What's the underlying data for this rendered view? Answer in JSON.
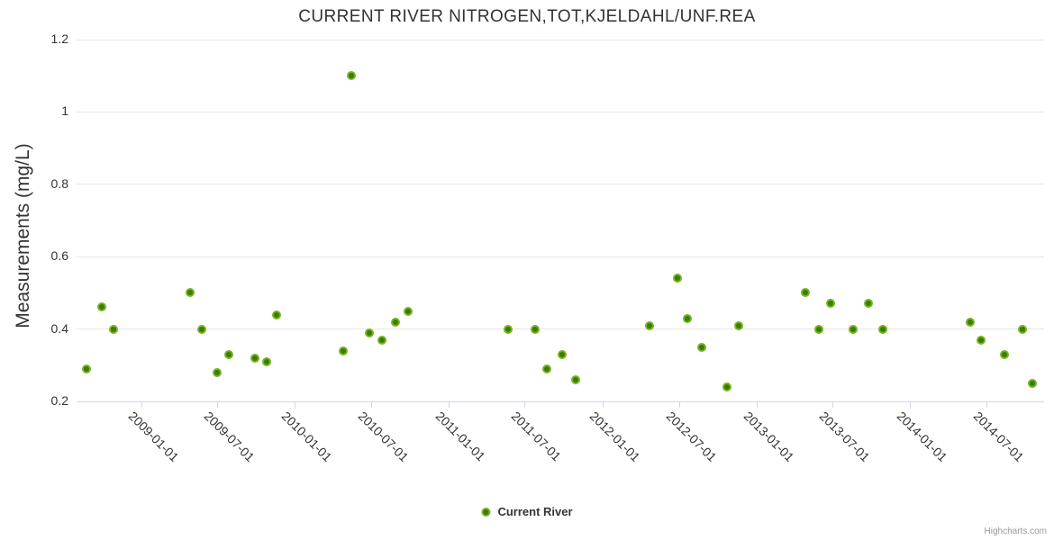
{
  "credits": "Highcharts.com",
  "colors": {
    "marker_ring": "#76b41e",
    "marker_core": "#3a7a05",
    "gridline": "#e6e6e6",
    "axis_line": "#ccd6eb",
    "text": "#333333",
    "credits_text": "#999999"
  },
  "chart_data": {
    "type": "scatter",
    "title": "CURRENT RIVER NITROGEN,TOT,KJELDAHL/UNF.REA",
    "xlabel": "",
    "ylabel": "Measurements (mg/L)",
    "ylim": [
      0.2,
      1.2
    ],
    "y_ticks": [
      0.2,
      0.4,
      0.6,
      0.8,
      1,
      1.2
    ],
    "y_tick_labels": [
      "0.2",
      "0.4",
      "0.6",
      "0.8",
      "1",
      "1.2"
    ],
    "x_min": "2008-08-01",
    "x_max": "2014-11-15",
    "x_ticks": [
      "2009-01-01",
      "2009-07-01",
      "2010-01-01",
      "2010-07-01",
      "2011-01-01",
      "2011-07-01",
      "2012-01-01",
      "2012-07-01",
      "2013-01-01",
      "2013-07-01",
      "2014-01-01",
      "2014-07-01"
    ],
    "grid": true,
    "legend_position": "bottom-center",
    "series": [
      {
        "name": "Current River",
        "color": "#76b41e",
        "points": [
          {
            "date": "2008-08-25",
            "value": 0.29
          },
          {
            "date": "2008-09-30",
            "value": 0.46
          },
          {
            "date": "2008-10-27",
            "value": 0.4
          },
          {
            "date": "2009-04-28",
            "value": 0.5
          },
          {
            "date": "2009-05-26",
            "value": 0.4
          },
          {
            "date": "2009-06-30",
            "value": 0.28
          },
          {
            "date": "2009-07-29",
            "value": 0.33
          },
          {
            "date": "2009-09-28",
            "value": 0.32
          },
          {
            "date": "2009-10-26",
            "value": 0.31
          },
          {
            "date": "2009-11-18",
            "value": 0.44
          },
          {
            "date": "2010-04-27",
            "value": 0.34
          },
          {
            "date": "2010-05-16",
            "value": 1.1
          },
          {
            "date": "2010-06-27",
            "value": 0.39
          },
          {
            "date": "2010-07-26",
            "value": 0.37
          },
          {
            "date": "2010-08-28",
            "value": 0.42
          },
          {
            "date": "2010-09-26",
            "value": 0.45
          },
          {
            "date": "2011-05-22",
            "value": 0.4
          },
          {
            "date": "2011-07-25",
            "value": 0.4
          },
          {
            "date": "2011-08-22",
            "value": 0.29
          },
          {
            "date": "2011-09-27",
            "value": 0.33
          },
          {
            "date": "2011-10-29",
            "value": 0.26
          },
          {
            "date": "2012-04-23",
            "value": 0.41
          },
          {
            "date": "2012-06-27",
            "value": 0.54
          },
          {
            "date": "2012-07-22",
            "value": 0.43
          },
          {
            "date": "2012-08-24",
            "value": 0.35
          },
          {
            "date": "2012-10-24",
            "value": 0.24
          },
          {
            "date": "2012-11-20",
            "value": 0.41
          },
          {
            "date": "2013-04-28",
            "value": 0.5
          },
          {
            "date": "2013-05-29",
            "value": 0.4
          },
          {
            "date": "2013-06-26",
            "value": 0.47
          },
          {
            "date": "2013-08-18",
            "value": 0.4
          },
          {
            "date": "2013-09-24",
            "value": 0.47
          },
          {
            "date": "2013-10-28",
            "value": 0.4
          },
          {
            "date": "2014-05-24",
            "value": 0.42
          },
          {
            "date": "2014-06-19",
            "value": 0.37
          },
          {
            "date": "2014-08-12",
            "value": 0.33
          },
          {
            "date": "2014-09-25",
            "value": 0.4
          },
          {
            "date": "2014-10-18",
            "value": 0.25
          }
        ]
      }
    ]
  }
}
